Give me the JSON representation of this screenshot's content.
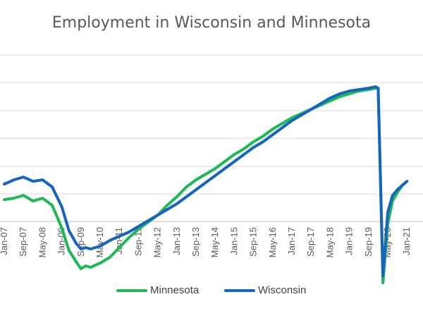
{
  "chart_data": {
    "type": "line",
    "title": "Employment in Wisconsin and Minnesota",
    "xlabel": "",
    "ylabel": "",
    "grid": true,
    "legend_position": "bottom",
    "x_tick_labels": [
      "Jan-07",
      "Sep-07",
      "May-08",
      "Jan-09",
      "Sep-09",
      "May-10",
      "Jan-11",
      "Sep-11",
      "May-12",
      "Jan-13",
      "Sep-13",
      "May-14",
      "Jan-15",
      "Sep-15",
      "May-16",
      "Jan-17",
      "Sep-17",
      "May-18",
      "Jan-19",
      "Sep-19",
      "May-20",
      "Jan-21"
    ],
    "x_tick_indices": [
      0,
      8,
      16,
      24,
      32,
      40,
      48,
      56,
      64,
      72,
      80,
      88,
      96,
      104,
      112,
      120,
      128,
      136,
      144,
      152,
      160,
      168
    ],
    "series": [
      {
        "name": "Minnesota",
        "color": "#1DB954",
        "points": [
          [
            0,
            100.9
          ],
          [
            4,
            101.0
          ],
          [
            8,
            101.2
          ],
          [
            12,
            100.8
          ],
          [
            16,
            101.0
          ],
          [
            20,
            100.5
          ],
          [
            24,
            98.9
          ],
          [
            27,
            97.3
          ],
          [
            30,
            96.5
          ],
          [
            32,
            96.0
          ],
          [
            34,
            96.2
          ],
          [
            36,
            96.1
          ],
          [
            40,
            96.4
          ],
          [
            44,
            96.8
          ],
          [
            48,
            97.5
          ],
          [
            52,
            98.2
          ],
          [
            56,
            98.8
          ],
          [
            60,
            99.3
          ],
          [
            64,
            99.8
          ],
          [
            68,
            100.5
          ],
          [
            72,
            101.1
          ],
          [
            76,
            101.8
          ],
          [
            80,
            102.3
          ],
          [
            84,
            102.7
          ],
          [
            88,
            103.1
          ],
          [
            92,
            103.6
          ],
          [
            96,
            104.1
          ],
          [
            100,
            104.5
          ],
          [
            104,
            105.0
          ],
          [
            108,
            105.4
          ],
          [
            112,
            105.9
          ],
          [
            116,
            106.3
          ],
          [
            120,
            106.7
          ],
          [
            124,
            107.0
          ],
          [
            128,
            107.3
          ],
          [
            132,
            107.6
          ],
          [
            136,
            107.9
          ],
          [
            140,
            108.2
          ],
          [
            144,
            108.4
          ],
          [
            148,
            108.6
          ],
          [
            152,
            108.7
          ],
          [
            155,
            108.8
          ],
          [
            156,
            108.8
          ],
          [
            158,
            95.0
          ],
          [
            160,
            99.2
          ],
          [
            162,
            100.8
          ],
          [
            164,
            101.4
          ],
          [
            166,
            101.9
          ],
          [
            168,
            102.2
          ]
        ]
      },
      {
        "name": "Wisconsin",
        "color": "#1565C0",
        "points": [
          [
            0,
            102.0
          ],
          [
            4,
            102.3
          ],
          [
            8,
            102.5
          ],
          [
            12,
            102.2
          ],
          [
            16,
            102.3
          ],
          [
            20,
            101.8
          ],
          [
            24,
            100.4
          ],
          [
            27,
            98.7
          ],
          [
            30,
            97.8
          ],
          [
            32,
            97.4
          ],
          [
            34,
            97.5
          ],
          [
            36,
            97.4
          ],
          [
            40,
            97.6
          ],
          [
            44,
            98.0
          ],
          [
            48,
            98.3
          ],
          [
            52,
            98.6
          ],
          [
            56,
            99.0
          ],
          [
            60,
            99.4
          ],
          [
            64,
            99.8
          ],
          [
            68,
            100.2
          ],
          [
            72,
            100.6
          ],
          [
            76,
            101.1
          ],
          [
            80,
            101.6
          ],
          [
            84,
            102.1
          ],
          [
            88,
            102.6
          ],
          [
            92,
            103.1
          ],
          [
            96,
            103.6
          ],
          [
            100,
            104.1
          ],
          [
            104,
            104.6
          ],
          [
            108,
            105.0
          ],
          [
            112,
            105.5
          ],
          [
            116,
            106.0
          ],
          [
            120,
            106.5
          ],
          [
            124,
            106.9
          ],
          [
            128,
            107.3
          ],
          [
            132,
            107.7
          ],
          [
            136,
            108.1
          ],
          [
            140,
            108.4
          ],
          [
            144,
            108.6
          ],
          [
            148,
            108.7
          ],
          [
            152,
            108.8
          ],
          [
            155,
            108.9
          ],
          [
            156,
            108.8
          ],
          [
            158,
            95.5
          ],
          [
            160,
            100.0
          ],
          [
            162,
            101.2
          ],
          [
            164,
            101.6
          ],
          [
            166,
            101.9
          ],
          [
            168,
            102.2
          ]
        ]
      }
    ]
  }
}
